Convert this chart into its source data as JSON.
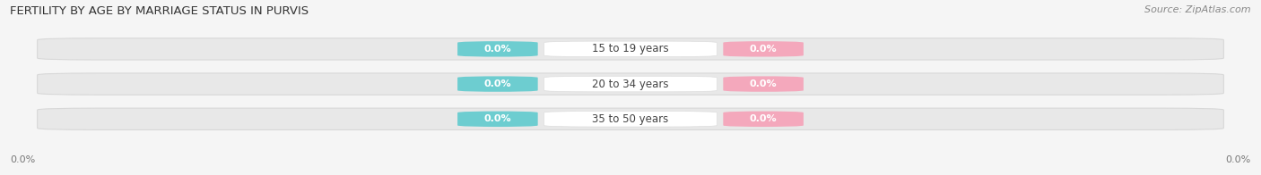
{
  "title": "FERTILITY BY AGE BY MARRIAGE STATUS IN PURVIS",
  "source": "Source: ZipAtlas.com",
  "age_groups": [
    "15 to 19 years",
    "20 to 34 years",
    "35 to 50 years"
  ],
  "married_values": [
    "0.0%",
    "0.0%",
    "0.0%"
  ],
  "unmarried_values": [
    "0.0%",
    "0.0%",
    "0.0%"
  ],
  "married_color": "#6dcdd0",
  "unmarried_color": "#f4a8bc",
  "bar_bg_color": "#e8e8e8",
  "bar_bg_edge_color": "#d8d8d8",
  "title_fontsize": 9.5,
  "source_fontsize": 8,
  "label_fontsize": 8,
  "age_fontsize": 8.5,
  "axis_label_fontsize": 8,
  "legend_fontsize": 8.5,
  "left_axis_label": "0.0%",
  "right_axis_label": "0.0%",
  "background_color": "#f5f5f5",
  "title_color": "#333333",
  "source_color": "#888888",
  "axis_label_color": "#777777"
}
